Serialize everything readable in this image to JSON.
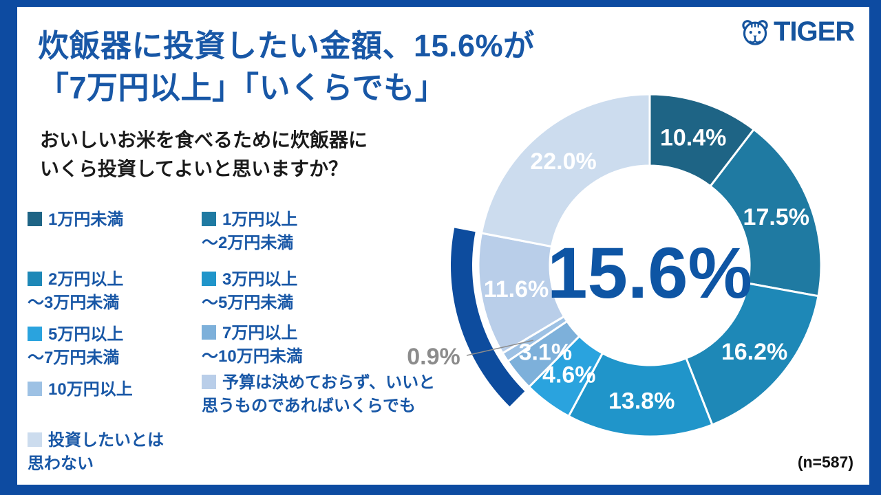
{
  "frame": {
    "accent_color": "#0d4ba1"
  },
  "logo": {
    "brand": "TIGER",
    "color": "#15549e"
  },
  "header": {
    "title_line1": "炊飯器に投資したい金額、15.6%が",
    "title_line2": "「7万円以上」「いくらでも」",
    "question_line1": "おいしいお米を食べるために炊飯器に",
    "question_line2": "いくら投資してよいと思いますか？"
  },
  "footer": {
    "sample_size": "(n=587)"
  },
  "chart_data": {
    "type": "pie",
    "donut": true,
    "title": "炊飯器に投資したい金額、15.6%が「7万円以上」「いくらでも」",
    "unit": "%",
    "start_angle_deg": 0,
    "direction": "clockwise",
    "center_label": "15.6%",
    "center_label_color": "#0e55a4",
    "segments": [
      {
        "label": "1万円未満",
        "value": 10.4,
        "color": "#1e6485"
      },
      {
        "label": "1万円以上～2万円未満",
        "value": 17.5,
        "color": "#1f7aa2"
      },
      {
        "label": "2万円以上～3万円未満",
        "value": 16.2,
        "color": "#1e88b7"
      },
      {
        "label": "3万円以上～5万円未満",
        "value": 13.8,
        "color": "#2095ca"
      },
      {
        "label": "5万円以上～7万円未満",
        "value": 4.6,
        "color": "#2aa3de"
      },
      {
        "label": "7万円以上～10万円未満",
        "value": 3.1,
        "color": "#7db0da"
      },
      {
        "label": "10万円以上",
        "value": 0.9,
        "color": "#9dc1e4",
        "label_outside": true
      },
      {
        "label": "予算は決めておらず、いいと思うものであればいくらでも",
        "value": 11.6,
        "color": "#b9cee9"
      },
      {
        "label": "投資したいとは思わない",
        "value": 22.0,
        "color": "#ccdcee"
      }
    ],
    "highlight": {
      "segment_indices": [
        5,
        6,
        7
      ],
      "color": "#0d4c9e",
      "total_label": "15.6%"
    },
    "outside_label": {
      "text": "0.9%",
      "color": "#8c8c8c",
      "segment_index": 6
    },
    "legend_position": "left"
  },
  "legend": {
    "columns": [
      {
        "items": [
          {
            "segment_index": 0,
            "label": "1万円未満"
          },
          {
            "segment_index": 2,
            "label": "2万円以上\n～3万円未満"
          },
          {
            "segment_index": 4,
            "label": "5万円以上\n～7万円未満"
          },
          {
            "segment_index": 6,
            "label": "10万円以上"
          },
          {
            "segment_index": 8,
            "label": "投資したいとは\n思わない"
          }
        ]
      },
      {
        "items": [
          {
            "segment_index": 1,
            "label": "1万円以上\n～2万円未満"
          },
          {
            "segment_index": 3,
            "label": "3万円以上\n～5万円未満"
          },
          {
            "segment_index": 5,
            "label": "7万円以上\n～10万円未満"
          },
          {
            "segment_index": 7,
            "label": "予算は決めておらず、いいと\n思うものであればいくらでも"
          }
        ]
      }
    ]
  }
}
